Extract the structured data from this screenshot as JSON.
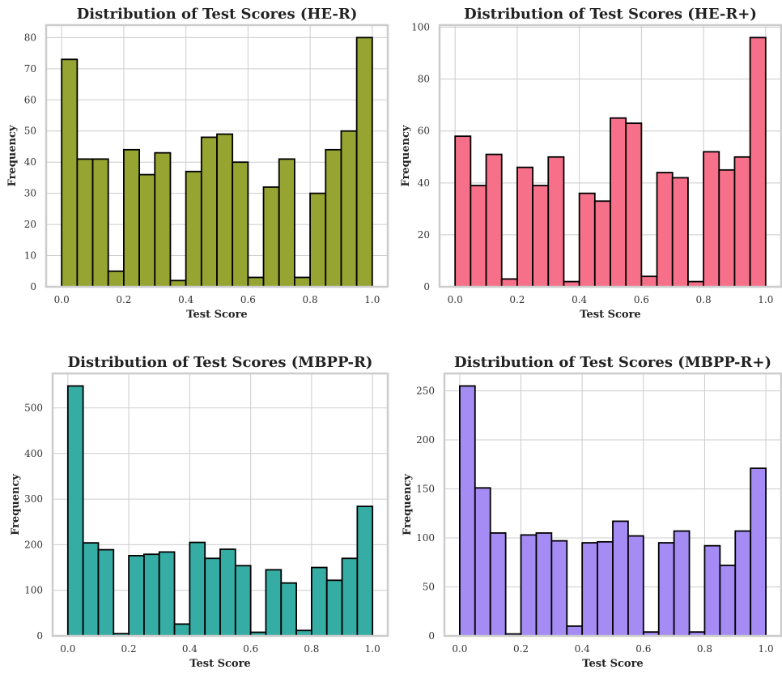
{
  "chart_data": [
    {
      "type": "bar",
      "title": "Distribution of Test Scores (HE-R)",
      "xlabel": "Test Score",
      "ylabel": "Frequency",
      "color": "#96a431",
      "bin_edges": [
        0.0,
        0.05,
        0.1,
        0.15,
        0.2,
        0.25,
        0.3,
        0.35,
        0.4,
        0.45,
        0.5,
        0.55,
        0.6,
        0.65,
        0.7,
        0.75,
        0.8,
        0.85,
        0.9,
        0.95,
        1.0
      ],
      "values": [
        73,
        41,
        41,
        5,
        44,
        36,
        43,
        2,
        37,
        48,
        49,
        40,
        3,
        32,
        41,
        3,
        30,
        44,
        50,
        80
      ],
      "xlim": [
        -0.05,
        1.05
      ],
      "ylim": [
        0,
        84
      ],
      "xticks": [
        0.0,
        0.2,
        0.4,
        0.6,
        0.8,
        1.0
      ],
      "xtick_labels": [
        "0.0",
        "0.2",
        "0.4",
        "0.6",
        "0.8",
        "1.0"
      ],
      "yticks": [
        0,
        10,
        20,
        30,
        40,
        50,
        60,
        70,
        80
      ],
      "ytick_labels": [
        "0",
        "10",
        "20",
        "30",
        "40",
        "50",
        "60",
        "70",
        "80"
      ],
      "grid": true
    },
    {
      "type": "bar",
      "title": "Distribution of Test Scores (HE-R+)",
      "xlabel": "Test Score",
      "ylabel": "Frequency",
      "color": "#f7708a",
      "bin_edges": [
        0.0,
        0.05,
        0.1,
        0.15,
        0.2,
        0.25,
        0.3,
        0.35,
        0.4,
        0.45,
        0.5,
        0.55,
        0.6,
        0.65,
        0.7,
        0.75,
        0.8,
        0.85,
        0.9,
        0.95,
        1.0
      ],
      "values": [
        58,
        39,
        51,
        3,
        46,
        39,
        50,
        2,
        36,
        33,
        65,
        63,
        4,
        44,
        42,
        2,
        52,
        45,
        50,
        96
      ],
      "xlim": [
        -0.05,
        1.05
      ],
      "ylim": [
        0,
        100.8
      ],
      "xticks": [
        0.0,
        0.2,
        0.4,
        0.6,
        0.8,
        1.0
      ],
      "xtick_labels": [
        "0.0",
        "0.2",
        "0.4",
        "0.6",
        "0.8",
        "1.0"
      ],
      "yticks": [
        0,
        20,
        40,
        60,
        80,
        100
      ],
      "ytick_labels": [
        "0",
        "20",
        "40",
        "60",
        "80",
        "100"
      ],
      "grid": true
    },
    {
      "type": "bar",
      "title": "Distribution of Test Scores (MBPP-R)",
      "xlabel": "Test Score",
      "ylabel": "Frequency",
      "color": "#36ada4",
      "bin_edges": [
        0.0,
        0.05,
        0.1,
        0.15,
        0.2,
        0.25,
        0.3,
        0.35,
        0.4,
        0.45,
        0.5,
        0.55,
        0.6,
        0.65,
        0.7,
        0.75,
        0.8,
        0.85,
        0.9,
        0.95,
        1.0
      ],
      "values": [
        548,
        204,
        189,
        5,
        176,
        179,
        184,
        26,
        205,
        170,
        190,
        154,
        8,
        145,
        116,
        12,
        150,
        122,
        170,
        284
      ],
      "xlim": [
        -0.05,
        1.05
      ],
      "ylim": [
        0,
        575.4
      ],
      "xticks": [
        0.0,
        0.2,
        0.4,
        0.6,
        0.8,
        1.0
      ],
      "xtick_labels": [
        "0.0",
        "0.2",
        "0.4",
        "0.6",
        "0.8",
        "1.0"
      ],
      "yticks": [
        0,
        100,
        200,
        300,
        400,
        500
      ],
      "ytick_labels": [
        "0",
        "100",
        "200",
        "300",
        "400",
        "500"
      ],
      "grid": true
    },
    {
      "type": "bar",
      "title": "Distribution of Test Scores (MBPP-R+)",
      "xlabel": "Test Score",
      "ylabel": "Frequency",
      "color": "#a48cf4",
      "bin_edges": [
        0.0,
        0.05,
        0.1,
        0.15,
        0.2,
        0.25,
        0.3,
        0.35,
        0.4,
        0.45,
        0.5,
        0.55,
        0.6,
        0.65,
        0.7,
        0.75,
        0.8,
        0.85,
        0.9,
        0.95,
        1.0
      ],
      "values": [
        255,
        151,
        105,
        2,
        103,
        105,
        97,
        10,
        95,
        96,
        117,
        102,
        4,
        95,
        107,
        4,
        92,
        72,
        107,
        171
      ],
      "xlim": [
        -0.05,
        1.05
      ],
      "ylim": [
        0,
        267.75
      ],
      "xticks": [
        0.0,
        0.2,
        0.4,
        0.6,
        0.8,
        1.0
      ],
      "xtick_labels": [
        "0.0",
        "0.2",
        "0.4",
        "0.6",
        "0.8",
        "1.0"
      ],
      "yticks": [
        0,
        50,
        100,
        150,
        200,
        250
      ],
      "ytick_labels": [
        "0",
        "50",
        "100",
        "150",
        "200",
        "250"
      ],
      "grid": true
    }
  ]
}
